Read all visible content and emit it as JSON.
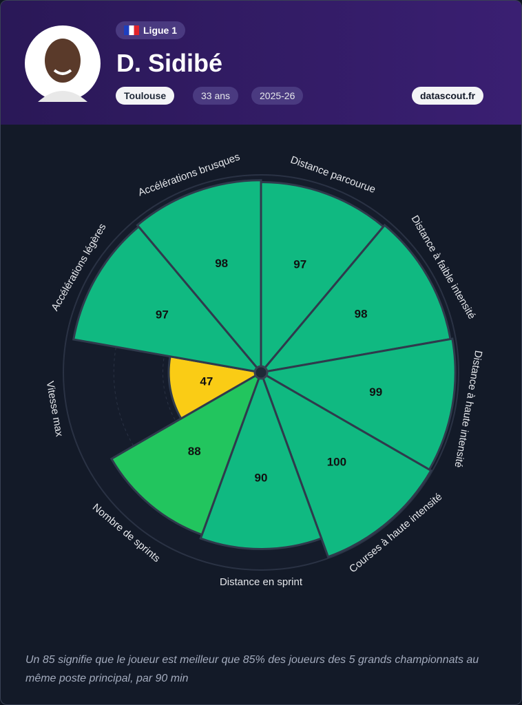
{
  "header": {
    "league": "Ligue 1",
    "player": "D. Sidibé",
    "club": "Toulouse",
    "age": "33 ans",
    "season": "2025-26",
    "source": "datascout.fr"
  },
  "chart_data": {
    "type": "pizza",
    "categories": [
      "Distance parcourue",
      "Distance à faible intensité",
      "Distance à haute intensité",
      "Courses à haute intensité",
      "Distance en sprint",
      "Nombre de sprints",
      "Vitesse max",
      "Accélérations légères",
      "Accélérations brusques"
    ],
    "values": [
      97,
      98,
      99,
      100,
      90,
      88,
      47,
      97,
      98
    ],
    "colors": [
      "#10b981",
      "#10b981",
      "#10b981",
      "#10b981",
      "#10b981",
      "#22c55e",
      "#facc15",
      "#10b981",
      "#10b981"
    ],
    "ylim": [
      0,
      100
    ]
  },
  "footnote": "Un 85 signifie que le joueur est meilleur que 85% des joueurs des 5 grands championnats au même poste principal, par 90 min"
}
